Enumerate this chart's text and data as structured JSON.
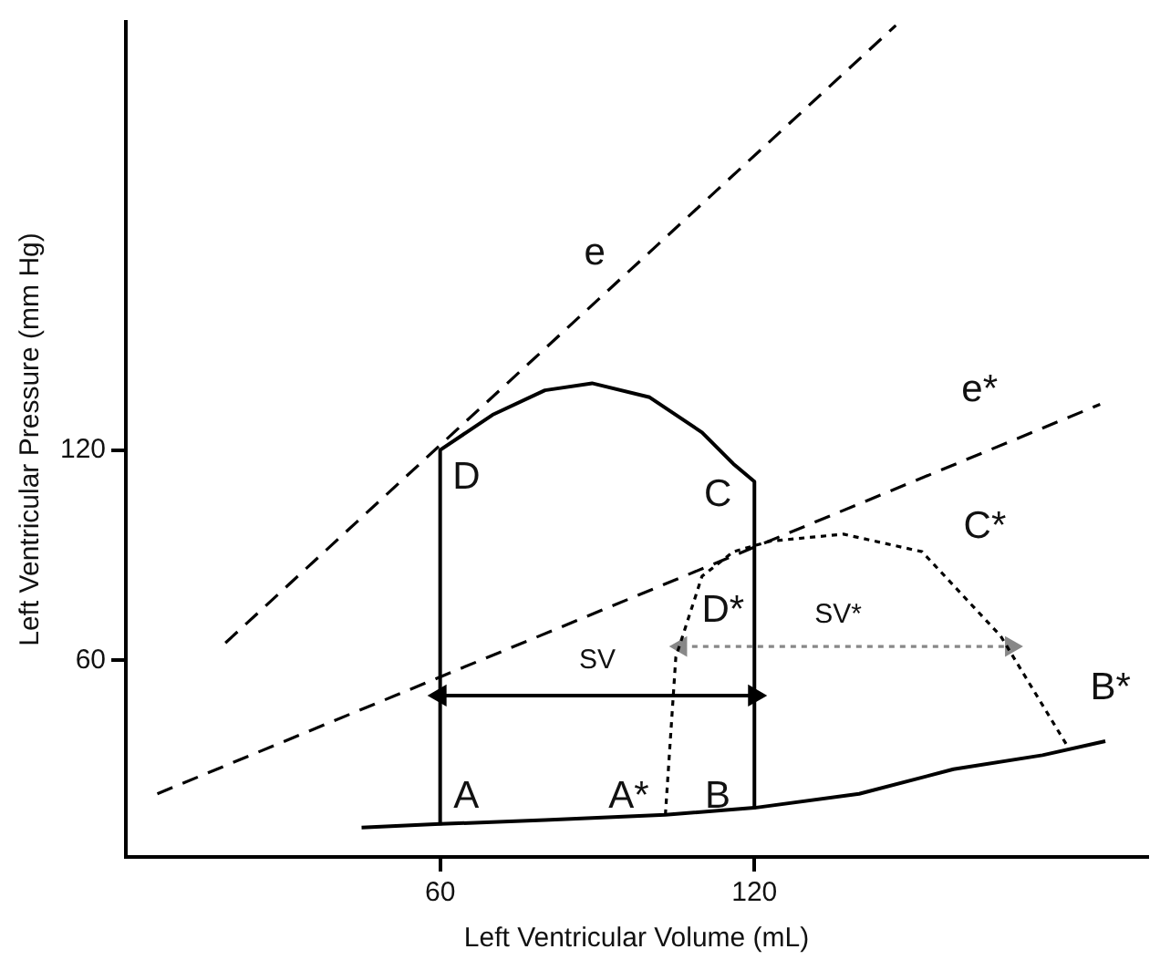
{
  "chart_data": {
    "type": "line",
    "xlabel": "Left Ventricular Volume (mL)",
    "ylabel": "Left Ventricular Pressure (mm Hg)",
    "xlim": [
      0,
      195
    ],
    "ylim": [
      4,
      242
    ],
    "xticks": [
      60,
      120
    ],
    "yticks": [
      60,
      120
    ],
    "grid": false,
    "legend": false,
    "series": [
      {
        "color": "#000000",
        "line_style": "solid",
        "marker": "none",
        "x": [
          60,
          60,
          70,
          80,
          89,
          100,
          110,
          116,
          120,
          120
        ],
        "values": [
          13,
          120,
          130,
          137,
          139,
          135,
          125,
          116,
          111,
          18
        ]
      },
      {
        "color": "#000000",
        "line_style": "solid",
        "marker": "none",
        "x": [
          45,
          60,
          80,
          103,
          120,
          140,
          158,
          175,
          187
        ],
        "values": [
          12.4,
          13.4,
          14.5,
          16,
          18,
          22,
          29,
          33,
          37
        ]
      },
      {
        "color": "#000000",
        "line_style": "dotted",
        "marker": "none",
        "x": [
          103,
          105,
          110,
          116,
          123,
          137,
          152,
          167,
          180
        ],
        "values": [
          16,
          61,
          84,
          91,
          94,
          96,
          91,
          67,
          35
        ]
      },
      {
        "color": "#000000",
        "line_style": "dashed",
        "marker": "none",
        "x": [
          19,
          147
        ],
        "values": [
          65,
          241
        ]
      },
      {
        "color": "#000000",
        "line_style": "dashed",
        "marker": "none",
        "x": [
          6,
          186
        ],
        "values": [
          22,
          133
        ]
      },
      {
        "color": "#000000",
        "line_style": "solid",
        "marker": "triangle",
        "x": [
          60,
          120
        ],
        "values": [
          50,
          50
        ]
      },
      {
        "color": "#888888",
        "line_style": "dotted",
        "marker": "triangle",
        "x": [
          106,
          169
        ],
        "values": [
          64,
          64
        ]
      }
    ],
    "annotations": [
      "e",
      "e*",
      "D",
      "C",
      "C*",
      "D*",
      "SV",
      "SV*",
      "A",
      "A*",
      "B",
      "B*"
    ]
  }
}
